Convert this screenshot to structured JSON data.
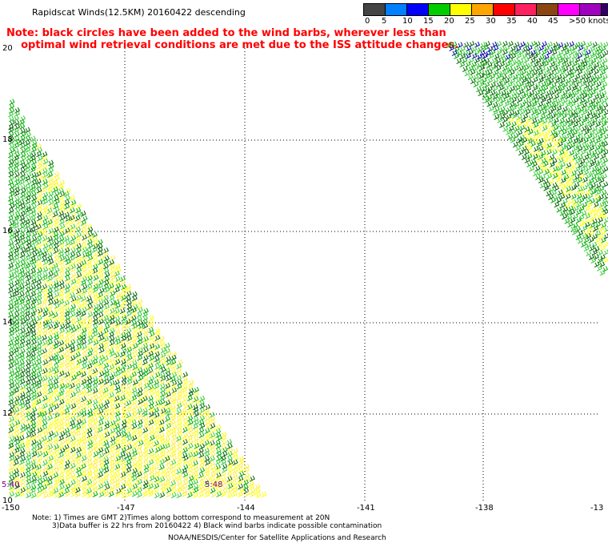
{
  "title": "Rapidscat Winds(12.5KM) 20160422 descending",
  "note_line1": "Note: black circles have been added to the wind barbs, wherever less than",
  "note_line2": "optimal wind retrieval conditions are met due to the ISS attitude changes.",
  "legend": {
    "colors": [
      "#444444",
      "#0080ff",
      "#0000ff",
      "#00cc00",
      "#ffff00",
      "#ffa500",
      "#ff0000",
      "#ff2060",
      "#8b4513",
      "#ff00ff",
      "#a000c0",
      "#300060"
    ],
    "labels": [
      "0",
      "5",
      "10",
      "15",
      "20",
      "25",
      "30",
      "35",
      "40",
      "45",
      ">50 knots"
    ]
  },
  "lat_labels": [
    "20",
    "18",
    "16",
    "14",
    "12",
    "10"
  ],
  "lon_labels": [
    "-150",
    "-147",
    "-144",
    "-141",
    "-138",
    "-13"
  ],
  "times": [
    "5:40",
    "5:48"
  ],
  "footer_line1": "Note: 1) Times are GMT 2)Times along bottom correspond to measurement at 20N",
  "footer_line2": "3)Data buffer is 22 hrs from 20160422 4) Black wind barbs indicate possible contamination",
  "credit": "NOAA/NESDIS/Center for Satellite Applications and Research"
}
